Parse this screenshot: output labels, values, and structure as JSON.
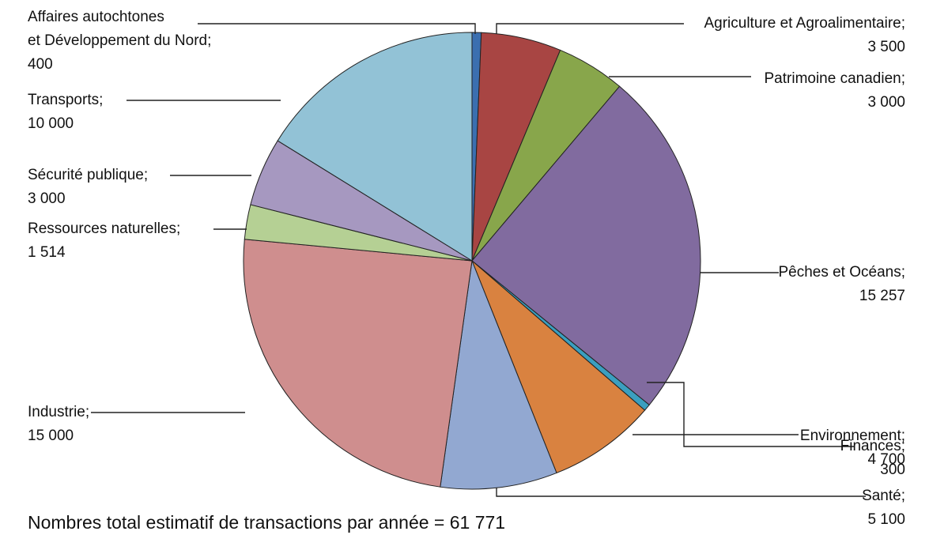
{
  "chart_data": {
    "type": "pie",
    "categories": [
      "Affaires autochtones\net Développement du Nord;",
      "Agriculture et Agroalimentaire;",
      "Patrimoine canadien;",
      "Pêches et Océans;",
      "Finances;",
      "Environnement;",
      "Santé;",
      "Industrie;",
      "Ressources naturelles;",
      "Sécurité publique;",
      "Transports;"
    ],
    "values": [
      400,
      3500,
      3000,
      15257,
      300,
      4700,
      5100,
      15000,
      1514,
      3000,
      10000
    ],
    "value_labels": [
      "400",
      "3 500",
      "3 000",
      "15 257",
      "300",
      "4 700",
      "5 100",
      "15 000",
      "1 514",
      "3 000",
      "10 000"
    ],
    "colors": [
      "#3b6fb0",
      "#a84543",
      "#88a64b",
      "#816b9f",
      "#3b9fbf",
      "#d98240",
      "#92a8d1",
      "#cf8e8e",
      "#b5d094",
      "#a698c0",
      "#92c2d6"
    ],
    "note": "Nombres total estimatif de transactions par année = 61 771"
  }
}
